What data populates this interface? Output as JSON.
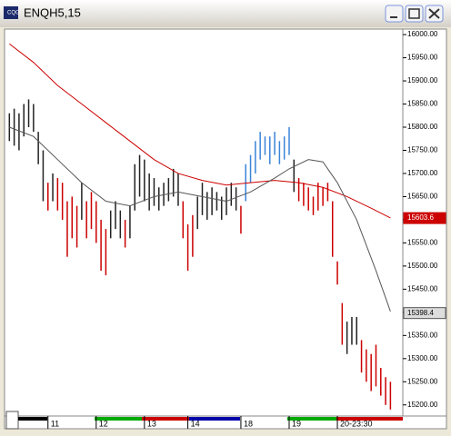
{
  "window_title": "ENQH5,15",
  "chart_data": {
    "type": "ohlc",
    "xlim": [
      -1,
      81
    ],
    "ylim": [
      15176,
      16010
    ],
    "yticks": [
      {
        "value": 16000,
        "label": "16000.00"
      },
      {
        "value": 15950,
        "label": "15950.00"
      },
      {
        "value": 15900,
        "label": "15900.00"
      },
      {
        "value": 15850,
        "label": "15850.00"
      },
      {
        "value": 15800,
        "label": "15800.00"
      },
      {
        "value": 15750,
        "label": "15750.00"
      },
      {
        "value": 15700,
        "label": "15700.00"
      },
      {
        "value": 15650,
        "label": "15650.00"
      },
      {
        "value": 15600,
        "label": "15600.00"
      },
      {
        "value": 15550,
        "label": "15550.00"
      },
      {
        "value": 15500,
        "label": "15500.00"
      },
      {
        "value": 15450,
        "label": "15450.00"
      },
      {
        "value": 15400,
        "label": "15400.00"
      },
      {
        "value": 15350,
        "label": "15350.00"
      },
      {
        "value": 15300,
        "label": "15300.00"
      },
      {
        "value": 15250,
        "label": "15250.00"
      },
      {
        "value": 15200,
        "label": "15200.00"
      }
    ],
    "xticks": [
      {
        "value": 8,
        "label": "11"
      },
      {
        "value": 18,
        "label": "12"
      },
      {
        "value": 28,
        "label": "13"
      },
      {
        "value": 37,
        "label": "14"
      },
      {
        "value": 48,
        "label": "18"
      },
      {
        "value": 58,
        "label": "19"
      },
      {
        "value": 68,
        "label": "20-23:30"
      }
    ],
    "bars": [
      {
        "color": "#222222",
        "x": [
          0,
          1,
          2,
          3,
          4,
          5,
          6,
          7,
          9,
          15,
          21,
          22,
          23,
          25,
          26,
          27,
          28,
          29,
          30,
          31,
          32,
          33,
          34,
          35,
          39,
          40,
          41,
          42,
          43,
          44,
          45,
          46,
          47,
          59,
          70,
          71,
          72
        ],
        "high": [
          15830,
          15840,
          15830,
          15850,
          15860,
          15850,
          15790,
          15750,
          15700,
          15680,
          15620,
          15640,
          15620,
          15630,
          15720,
          15740,
          15730,
          15700,
          15690,
          15670,
          15680,
          15690,
          15710,
          15700,
          15650,
          15680,
          15660,
          15670,
          15660,
          15650,
          15670,
          15680,
          15670,
          15730,
          15380,
          15390,
          15390
        ],
        "low": [
          15770,
          15760,
          15750,
          15780,
          15800,
          15790,
          15720,
          15640,
          15640,
          15600,
          15560,
          15580,
          15560,
          15560,
          15620,
          15650,
          15640,
          15620,
          15630,
          15620,
          15630,
          15640,
          15650,
          15630,
          15580,
          15610,
          15600,
          15610,
          15620,
          15600,
          15610,
          15630,
          15620,
          15660,
          15310,
          15330,
          15330
        ]
      },
      {
        "color": "#cc0000",
        "x": [
          8,
          10,
          11,
          12,
          13,
          14,
          16,
          17,
          18,
          19,
          20,
          24,
          36,
          37,
          38,
          48,
          60,
          61,
          62,
          63,
          64,
          65,
          66,
          67,
          68,
          69,
          73,
          74,
          75,
          76,
          77,
          78,
          79
        ],
        "high": [
          15680,
          15690,
          15680,
          15640,
          15650,
          15630,
          15640,
          15660,
          15640,
          15600,
          15580,
          15600,
          15640,
          15590,
          15610,
          15630,
          15690,
          15680,
          15670,
          15650,
          15680,
          15670,
          15680,
          15640,
          15510,
          15420,
          15340,
          15320,
          15310,
          15330,
          15280,
          15260,
          15250
        ],
        "low": [
          15620,
          15620,
          15600,
          15520,
          15560,
          15540,
          15560,
          15580,
          15550,
          15490,
          15480,
          15540,
          15560,
          15490,
          15520,
          15570,
          15640,
          15630,
          15620,
          15610,
          15620,
          15630,
          15640,
          15520,
          15460,
          15330,
          15270,
          15250,
          15230,
          15240,
          15220,
          15200,
          15190
        ]
      },
      {
        "color": "#3a84d8",
        "x": [
          49,
          50,
          51,
          52,
          53,
          54,
          55,
          56,
          57,
          58
        ],
        "high": [
          15720,
          15740,
          15770,
          15790,
          15780,
          15780,
          15790,
          15770,
          15780,
          15800
        ],
        "low": [
          15640,
          15680,
          15700,
          15730,
          15740,
          15720,
          15740,
          15720,
          15730,
          15740
        ]
      }
    ],
    "lines": [
      {
        "color": "#cc0000",
        "last_value": 15603.6,
        "x": [
          0,
          5,
          10,
          15,
          20,
          25,
          30,
          35,
          40,
          45,
          50,
          55,
          60,
          65,
          70,
          75,
          79
        ],
        "values": [
          15980,
          15940,
          15890,
          15850,
          15810,
          15770,
          15730,
          15700,
          15685,
          15675,
          15680,
          15685,
          15680,
          15670,
          15650,
          15625,
          15604
        ]
      },
      {
        "color": "#555555",
        "last_value": 15398.4,
        "x": [
          0,
          5,
          10,
          15,
          20,
          25,
          30,
          35,
          40,
          45,
          50,
          55,
          58,
          62,
          65,
          68,
          72,
          76,
          79
        ],
        "values": [
          15800,
          15780,
          15730,
          15680,
          15640,
          15630,
          15650,
          15660,
          15650,
          15640,
          15660,
          15690,
          15710,
          15730,
          15725,
          15680,
          15600,
          15490,
          15402
        ]
      }
    ]
  }
}
